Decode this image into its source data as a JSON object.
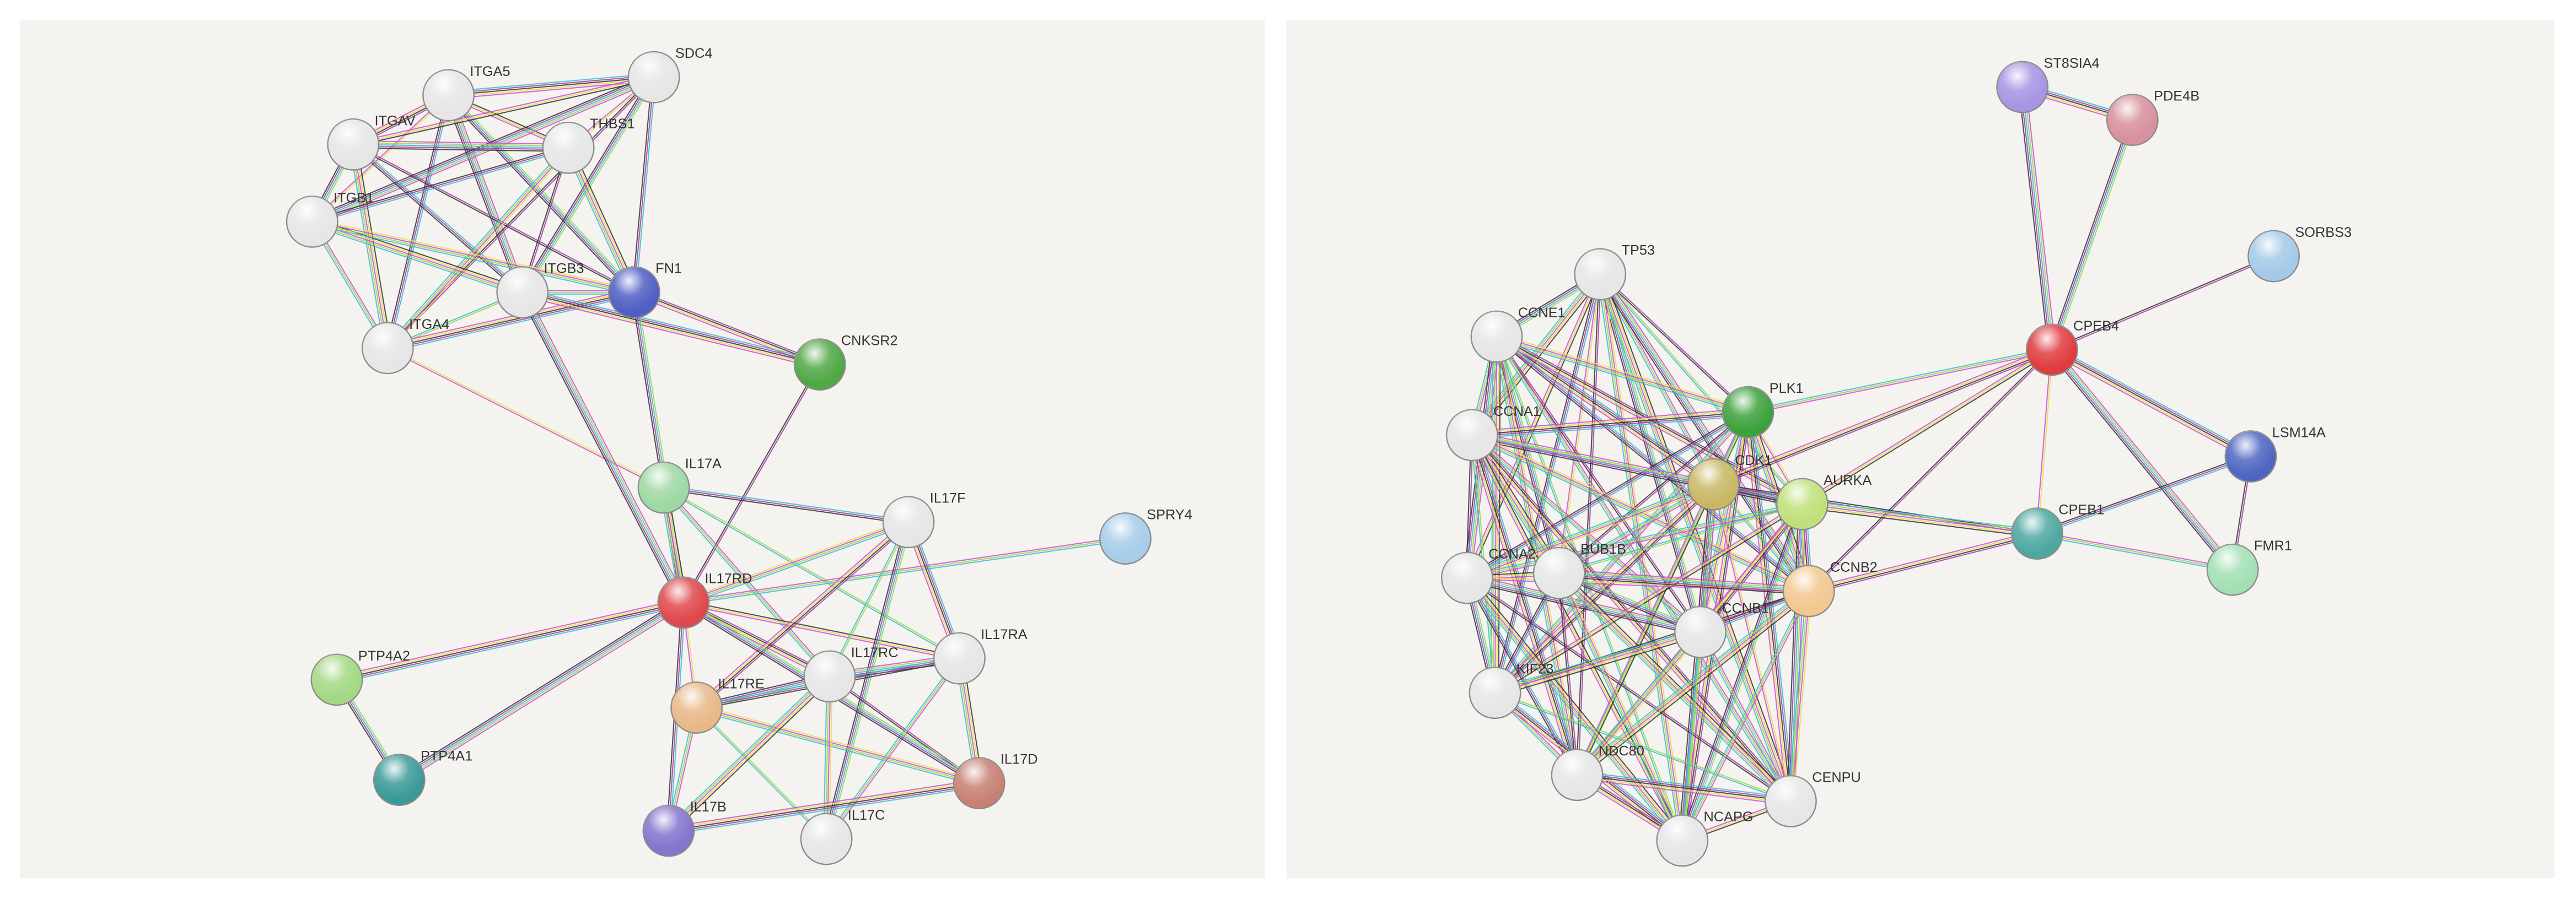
{
  "left_network": {
    "nodes": [
      "ITGA5",
      "SDC4",
      "ITGAV",
      "THBS1",
      "ITGB1",
      "ITGB3",
      "FN1",
      "ITGA4",
      "CNKSR2",
      "IL17A",
      "IL17F",
      "SPRY4",
      "IL17RD",
      "PTP4A2",
      "IL17RC",
      "IL17RA",
      "IL17RE",
      "PTP4A1",
      "IL17D",
      "IL17B",
      "IL17C"
    ]
  },
  "right_network": {
    "nodes": [
      "ST8SIA4",
      "PDE4B",
      "TP53",
      "SORBS3",
      "CCNE1",
      "CPEB4",
      "PLK1",
      "CCNA1",
      "LSM14A",
      "CDK1",
      "AURKA",
      "CPEB1",
      "FMR1",
      "CCNA2",
      "BUB1B",
      "CCNB2",
      "CCNB1",
      "KIF23",
      "NDC80",
      "CENPU",
      "NCAPG"
    ]
  }
}
